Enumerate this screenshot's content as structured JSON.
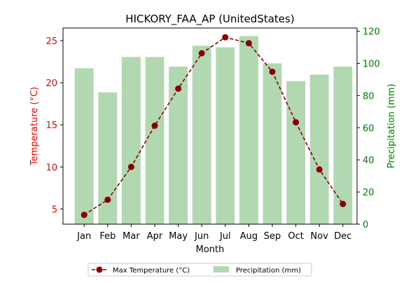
{
  "chart_data": {
    "type": "bar",
    "title": "HICKORY_FAA_AP (UnitedStates)",
    "xlabel": "Month",
    "ylabel_left": "Temperature (°C)",
    "ylabel_right": "Precipitation (mm)",
    "categories": [
      "Jan",
      "Feb",
      "Mar",
      "Apr",
      "May",
      "Jun",
      "Jul",
      "Aug",
      "Sep",
      "Oct",
      "Nov",
      "Dec"
    ],
    "series": [
      {
        "name": "Max Temperature (°C)",
        "kind": "line",
        "axis": "left",
        "color": "#8b0000",
        "values": [
          4.3,
          6.1,
          10.0,
          14.9,
          19.3,
          23.5,
          25.4,
          24.7,
          21.3,
          15.3,
          9.7,
          5.6
        ]
      },
      {
        "name": "Precipitation (mm)",
        "kind": "bar",
        "axis": "right",
        "color": "#b2d8b2",
        "values": [
          97,
          82,
          104,
          104,
          98,
          111,
          110,
          117,
          100,
          89,
          93,
          98
        ]
      }
    ],
    "ylim_left": [
      3.2,
      26.5
    ],
    "ylim_right": [
      0,
      122
    ],
    "yticks_left": [
      5,
      10,
      15,
      20,
      25
    ],
    "yticks_right": [
      0,
      20,
      40,
      60,
      80,
      100,
      120
    ],
    "left_axis_color": "#ff0000",
    "right_axis_color": "#008000",
    "grid": false,
    "legend_position": "bottom-center"
  }
}
